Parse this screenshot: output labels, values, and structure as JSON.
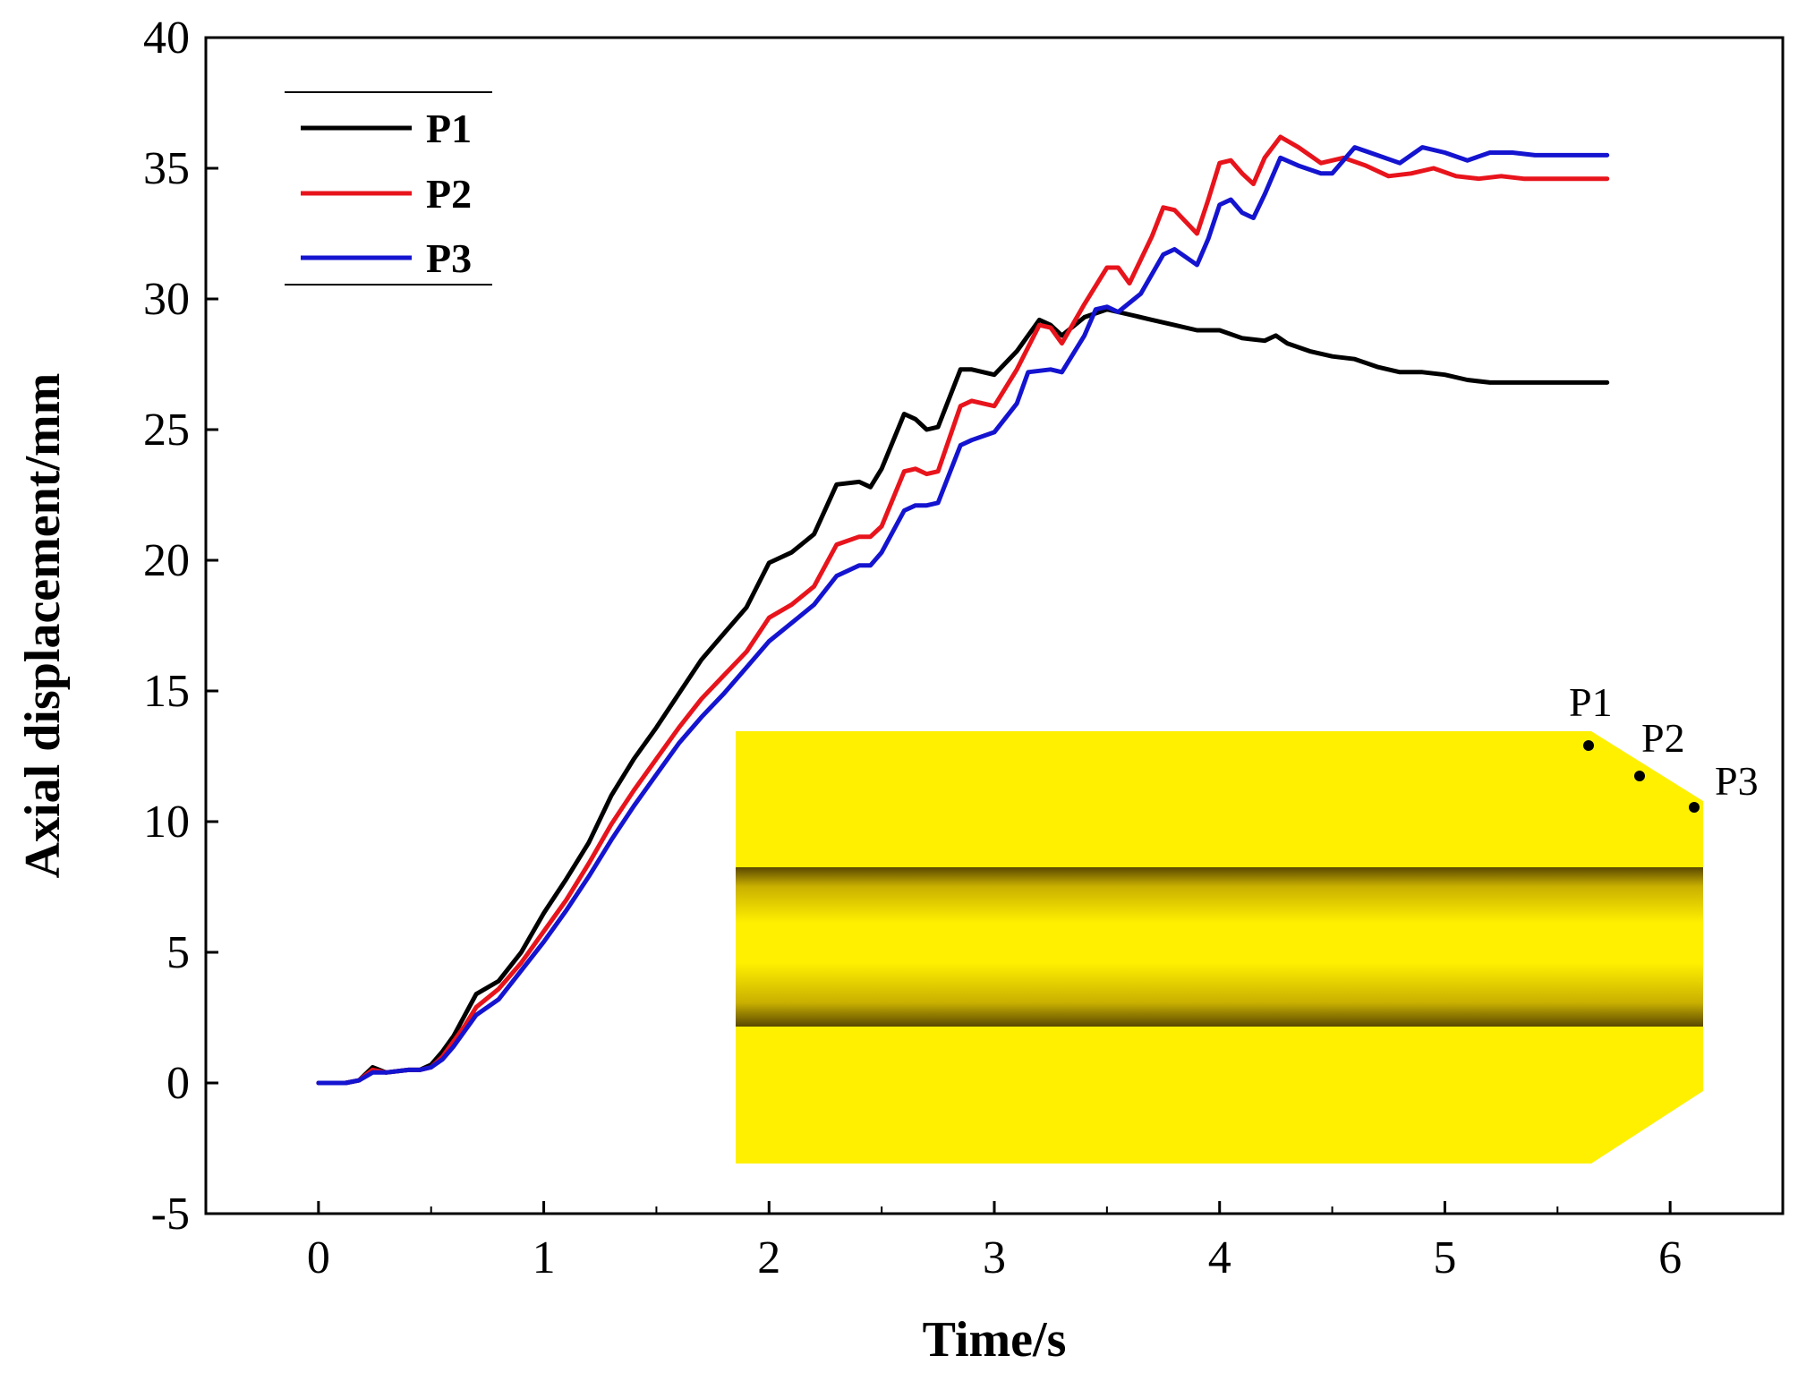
{
  "chart_data": {
    "type": "line",
    "title": "",
    "xlabel": "Time/s",
    "ylabel": "Axial displacement/mm",
    "xlim": [
      -0.5,
      6.5
    ],
    "ylim": [
      -5,
      40
    ],
    "xticks": [
      0,
      1,
      2,
      3,
      4,
      5,
      6
    ],
    "yticks": [
      -5,
      0,
      5,
      10,
      15,
      20,
      25,
      30,
      35,
      40
    ],
    "grid": false,
    "legend_position": "top-left",
    "series": [
      {
        "name": "P1",
        "color": "#000000",
        "points": [
          [
            0,
            0
          ],
          [
            0.12,
            0
          ],
          [
            0.18,
            0.1
          ],
          [
            0.24,
            0.6
          ],
          [
            0.3,
            0.4
          ],
          [
            0.4,
            0.5
          ],
          [
            0.45,
            0.5
          ],
          [
            0.5,
            0.7
          ],
          [
            0.55,
            1.2
          ],
          [
            0.6,
            1.8
          ],
          [
            0.65,
            2.6
          ],
          [
            0.7,
            3.4
          ],
          [
            0.8,
            3.9
          ],
          [
            0.9,
            5.0
          ],
          [
            1.0,
            6.5
          ],
          [
            1.1,
            7.8
          ],
          [
            1.2,
            9.2
          ],
          [
            1.3,
            11.0
          ],
          [
            1.4,
            12.4
          ],
          [
            1.5,
            13.6
          ],
          [
            1.6,
            14.9
          ],
          [
            1.7,
            16.2
          ],
          [
            1.8,
            17.2
          ],
          [
            1.9,
            18.2
          ],
          [
            2.0,
            19.9
          ],
          [
            2.1,
            20.3
          ],
          [
            2.2,
            21.0
          ],
          [
            2.3,
            22.9
          ],
          [
            2.4,
            23.0
          ],
          [
            2.45,
            22.8
          ],
          [
            2.5,
            23.5
          ],
          [
            2.6,
            25.6
          ],
          [
            2.65,
            25.4
          ],
          [
            2.7,
            25.0
          ],
          [
            2.75,
            25.1
          ],
          [
            2.85,
            27.3
          ],
          [
            2.9,
            27.3
          ],
          [
            3.0,
            27.1
          ],
          [
            3.1,
            28.0
          ],
          [
            3.2,
            29.2
          ],
          [
            3.25,
            29.0
          ],
          [
            3.3,
            28.6
          ],
          [
            3.4,
            29.3
          ],
          [
            3.5,
            29.6
          ],
          [
            3.6,
            29.4
          ],
          [
            3.7,
            29.2
          ],
          [
            3.8,
            29.0
          ],
          [
            3.9,
            28.8
          ],
          [
            4.0,
            28.8
          ],
          [
            4.1,
            28.5
          ],
          [
            4.2,
            28.4
          ],
          [
            4.25,
            28.6
          ],
          [
            4.3,
            28.3
          ],
          [
            4.4,
            28.0
          ],
          [
            4.5,
            27.8
          ],
          [
            4.6,
            27.7
          ],
          [
            4.7,
            27.4
          ],
          [
            4.8,
            27.2
          ],
          [
            4.9,
            27.2
          ],
          [
            5.0,
            27.1
          ],
          [
            5.1,
            26.9
          ],
          [
            5.2,
            26.8
          ],
          [
            5.3,
            26.8
          ],
          [
            5.4,
            26.8
          ],
          [
            5.5,
            26.8
          ],
          [
            5.6,
            26.8
          ],
          [
            5.72,
            26.8
          ]
        ]
      },
      {
        "name": "P2",
        "color": "#e8141c",
        "points": [
          [
            0,
            0
          ],
          [
            0.12,
            0
          ],
          [
            0.18,
            0.1
          ],
          [
            0.24,
            0.5
          ],
          [
            0.3,
            0.4
          ],
          [
            0.4,
            0.5
          ],
          [
            0.45,
            0.5
          ],
          [
            0.5,
            0.6
          ],
          [
            0.55,
            1.0
          ],
          [
            0.6,
            1.6
          ],
          [
            0.65,
            2.2
          ],
          [
            0.7,
            2.9
          ],
          [
            0.8,
            3.6
          ],
          [
            0.9,
            4.6
          ],
          [
            1.0,
            5.8
          ],
          [
            1.1,
            7.0
          ],
          [
            1.2,
            8.4
          ],
          [
            1.3,
            9.9
          ],
          [
            1.4,
            11.2
          ],
          [
            1.5,
            12.4
          ],
          [
            1.6,
            13.6
          ],
          [
            1.7,
            14.7
          ],
          [
            1.8,
            15.6
          ],
          [
            1.9,
            16.5
          ],
          [
            2.0,
            17.8
          ],
          [
            2.1,
            18.3
          ],
          [
            2.2,
            19.0
          ],
          [
            2.3,
            20.6
          ],
          [
            2.4,
            20.9
          ],
          [
            2.45,
            20.9
          ],
          [
            2.5,
            21.3
          ],
          [
            2.6,
            23.4
          ],
          [
            2.65,
            23.5
          ],
          [
            2.7,
            23.3
          ],
          [
            2.75,
            23.4
          ],
          [
            2.85,
            25.9
          ],
          [
            2.9,
            26.1
          ],
          [
            3.0,
            25.9
          ],
          [
            3.1,
            27.3
          ],
          [
            3.2,
            29.0
          ],
          [
            3.25,
            28.9
          ],
          [
            3.3,
            28.3
          ],
          [
            3.4,
            29.8
          ],
          [
            3.5,
            31.2
          ],
          [
            3.55,
            31.2
          ],
          [
            3.6,
            30.6
          ],
          [
            3.7,
            32.4
          ],
          [
            3.75,
            33.5
          ],
          [
            3.8,
            33.4
          ],
          [
            3.9,
            32.5
          ],
          [
            3.95,
            33.8
          ],
          [
            4.0,
            35.2
          ],
          [
            4.05,
            35.3
          ],
          [
            4.1,
            34.8
          ],
          [
            4.15,
            34.4
          ],
          [
            4.2,
            35.4
          ],
          [
            4.27,
            36.2
          ],
          [
            4.35,
            35.8
          ],
          [
            4.45,
            35.2
          ],
          [
            4.55,
            35.4
          ],
          [
            4.65,
            35.1
          ],
          [
            4.75,
            34.7
          ],
          [
            4.85,
            34.8
          ],
          [
            4.95,
            35.0
          ],
          [
            5.05,
            34.7
          ],
          [
            5.15,
            34.6
          ],
          [
            5.25,
            34.7
          ],
          [
            5.35,
            34.6
          ],
          [
            5.5,
            34.6
          ],
          [
            5.72,
            34.6
          ]
        ]
      },
      {
        "name": "P3",
        "color": "#1414d0",
        "points": [
          [
            0,
            0
          ],
          [
            0.12,
            0
          ],
          [
            0.18,
            0.1
          ],
          [
            0.24,
            0.4
          ],
          [
            0.3,
            0.4
          ],
          [
            0.4,
            0.5
          ],
          [
            0.45,
            0.5
          ],
          [
            0.5,
            0.6
          ],
          [
            0.55,
            0.9
          ],
          [
            0.6,
            1.4
          ],
          [
            0.65,
            2.0
          ],
          [
            0.7,
            2.6
          ],
          [
            0.8,
            3.2
          ],
          [
            0.9,
            4.3
          ],
          [
            1.0,
            5.4
          ],
          [
            1.1,
            6.6
          ],
          [
            1.2,
            7.9
          ],
          [
            1.3,
            9.3
          ],
          [
            1.4,
            10.6
          ],
          [
            1.5,
            11.8
          ],
          [
            1.6,
            13.0
          ],
          [
            1.7,
            14.0
          ],
          [
            1.8,
            14.9
          ],
          [
            1.9,
            15.9
          ],
          [
            2.0,
            16.9
          ],
          [
            2.1,
            17.6
          ],
          [
            2.2,
            18.3
          ],
          [
            2.3,
            19.4
          ],
          [
            2.4,
            19.8
          ],
          [
            2.45,
            19.8
          ],
          [
            2.5,
            20.3
          ],
          [
            2.6,
            21.9
          ],
          [
            2.65,
            22.1
          ],
          [
            2.7,
            22.1
          ],
          [
            2.75,
            22.2
          ],
          [
            2.85,
            24.4
          ],
          [
            2.9,
            24.6
          ],
          [
            3.0,
            24.9
          ],
          [
            3.1,
            26.0
          ],
          [
            3.15,
            27.2
          ],
          [
            3.25,
            27.3
          ],
          [
            3.3,
            27.2
          ],
          [
            3.4,
            28.6
          ],
          [
            3.45,
            29.6
          ],
          [
            3.5,
            29.7
          ],
          [
            3.55,
            29.5
          ],
          [
            3.65,
            30.2
          ],
          [
            3.75,
            31.7
          ],
          [
            3.8,
            31.9
          ],
          [
            3.9,
            31.3
          ],
          [
            3.95,
            32.3
          ],
          [
            4.0,
            33.6
          ],
          [
            4.05,
            33.8
          ],
          [
            4.1,
            33.3
          ],
          [
            4.15,
            33.1
          ],
          [
            4.2,
            34.0
          ],
          [
            4.27,
            35.4
          ],
          [
            4.35,
            35.1
          ],
          [
            4.45,
            34.8
          ],
          [
            4.5,
            34.8
          ],
          [
            4.6,
            35.8
          ],
          [
            4.7,
            35.5
          ],
          [
            4.8,
            35.2
          ],
          [
            4.9,
            35.8
          ],
          [
            5.0,
            35.6
          ],
          [
            5.1,
            35.3
          ],
          [
            5.2,
            35.6
          ],
          [
            5.3,
            35.6
          ],
          [
            5.4,
            35.5
          ],
          [
            5.5,
            35.5
          ],
          [
            5.72,
            35.5
          ]
        ]
      }
    ]
  },
  "inset": {
    "description_labels": [
      "P1",
      "P2",
      "P3"
    ],
    "fill_color": "#fff000",
    "bore_dark_color": "#5a4800",
    "points": [
      {
        "label": "P1"
      },
      {
        "label": "P2"
      },
      {
        "label": "P3"
      }
    ]
  }
}
